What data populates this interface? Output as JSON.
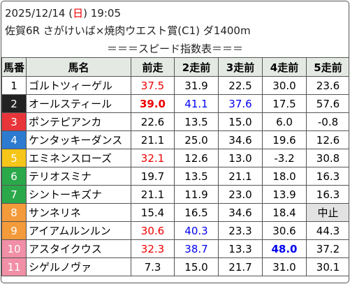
{
  "header": {
    "date": "2025/12/14",
    "weekday_open": "(",
    "weekday": "日",
    "weekday_close": ")",
    "time": "19:05",
    "race": "佐賀6R さがけいば×焼肉ウエスト賞(C1) ダ1400m"
  },
  "table": {
    "title": "＝＝＝スピード指数表＝＝＝",
    "columns": [
      "馬番",
      "馬名",
      "前走",
      "2走前",
      "3走前",
      "4走前",
      "5走前"
    ],
    "rows": [
      {
        "number": "1",
        "name": "ゴルトツィーゲル",
        "scores": [
          "37.5",
          "31.9",
          "22.5",
          "30.0",
          "23.6"
        ],
        "colors": [
          "red",
          null,
          null,
          null,
          null
        ]
      },
      {
        "number": "2",
        "name": "オールスティール",
        "scores": [
          "39.0",
          "41.1",
          "37.6",
          "17.5",
          "57.6"
        ],
        "colors": [
          "red-bold",
          "blue",
          "blue",
          null,
          null
        ]
      },
      {
        "number": "3",
        "name": "ポンテピアンカ",
        "scores": [
          "22.6",
          "13.5",
          "15.0",
          "6.0",
          "-0.8"
        ],
        "colors": [
          null,
          null,
          null,
          null,
          null
        ]
      },
      {
        "number": "4",
        "name": "ケンタッキーダンス",
        "scores": [
          "21.1",
          "25.0",
          "34.6",
          "19.6",
          "12.6"
        ],
        "colors": [
          null,
          null,
          null,
          null,
          null
        ]
      },
      {
        "number": "5",
        "name": "エミネンスローズ",
        "scores": [
          "32.1",
          "12.6",
          "13.0",
          "-3.2",
          "30.8"
        ],
        "colors": [
          "red",
          null,
          null,
          null,
          null
        ]
      },
      {
        "number": "6",
        "name": "テリオスミナ",
        "scores": [
          "19.7",
          "13.5",
          "21.1",
          "18.0",
          "16.3"
        ],
        "colors": [
          null,
          null,
          null,
          null,
          null
        ]
      },
      {
        "number": "7",
        "name": "シントーキズナ",
        "scores": [
          "21.1",
          "11.9",
          "23.0",
          "13.9",
          "16.3"
        ],
        "colors": [
          null,
          null,
          null,
          null,
          null
        ]
      },
      {
        "number": "8",
        "name": "サンネリネ",
        "scores": [
          "15.4",
          "16.5",
          "34.6",
          "18.4",
          "中止"
        ],
        "colors": [
          null,
          null,
          null,
          null,
          "gray"
        ]
      },
      {
        "number": "9",
        "name": "アイアムルンルン",
        "scores": [
          "30.6",
          "40.3",
          "23.3",
          "30.6",
          "44.3"
        ],
        "colors": [
          "red",
          "blue",
          null,
          null,
          null
        ]
      },
      {
        "number": "10",
        "name": "アスタイクウス",
        "scores": [
          "32.3",
          "38.7",
          "13.3",
          "48.0",
          "37.2"
        ],
        "colors": [
          "red",
          "blue",
          null,
          "blue-bold",
          null
        ]
      },
      {
        "number": "11",
        "name": "シゲルノヴァ",
        "scores": [
          "7.3",
          "15.0",
          "21.7",
          "31.0",
          "30.1"
        ],
        "colors": [
          null,
          null,
          null,
          null,
          null
        ]
      }
    ]
  }
}
